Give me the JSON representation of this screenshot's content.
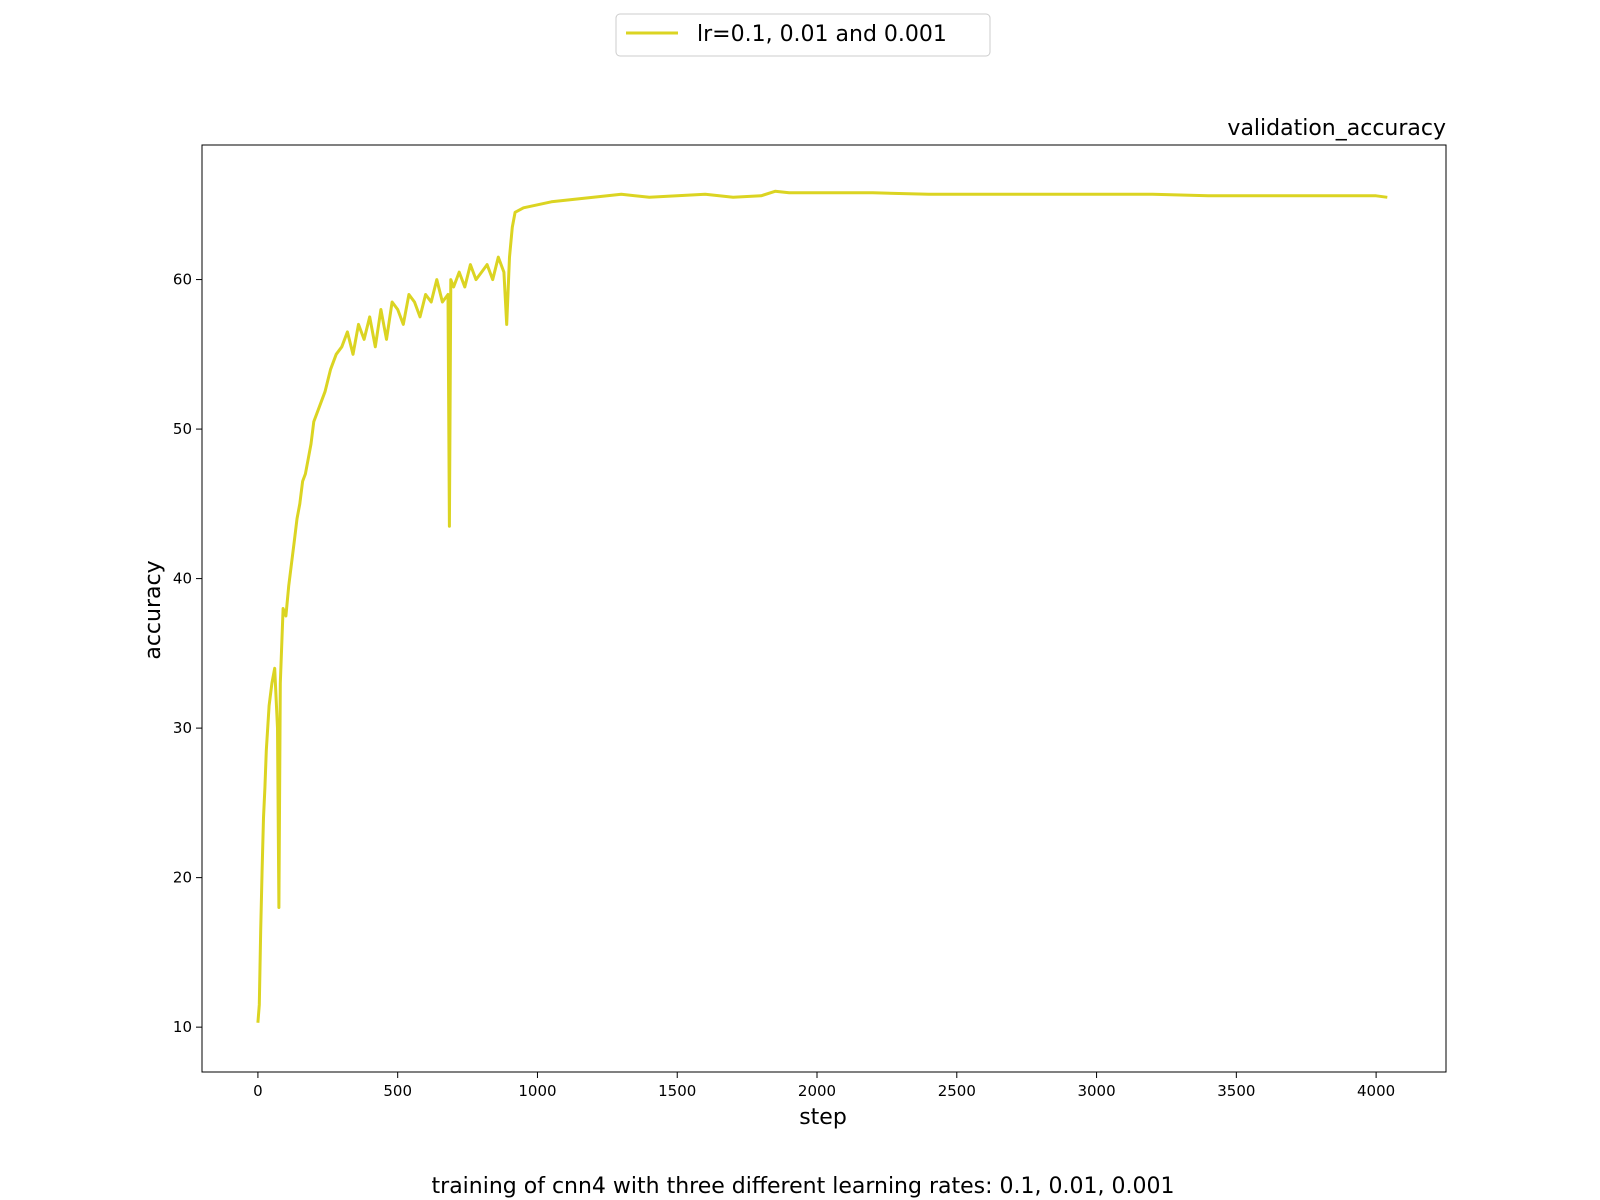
{
  "chart_data": {
    "type": "line",
    "title": "validation_accuracy",
    "xlabel": "step",
    "ylabel": "accuracy",
    "caption": "training of cnn4 with three different learning rates: 0.1, 0.01, 0.001",
    "xlim": [
      -200,
      4250
    ],
    "ylim": [
      7,
      69
    ],
    "xticks": [
      0,
      500,
      1000,
      1500,
      2000,
      2500,
      3000,
      3500,
      4000
    ],
    "yticks": [
      10,
      20,
      30,
      40,
      50,
      60
    ],
    "grid": false,
    "legend_position": "top-center",
    "series": [
      {
        "name": "lr=0.1, 0.01 and 0.001",
        "color": "#dbd422",
        "x": [
          0,
          5,
          10,
          15,
          20,
          25,
          30,
          40,
          50,
          60,
          70,
          75,
          80,
          90,
          100,
          110,
          120,
          130,
          140,
          150,
          160,
          170,
          180,
          190,
          200,
          220,
          240,
          260,
          280,
          300,
          320,
          340,
          360,
          380,
          400,
          420,
          440,
          460,
          480,
          500,
          520,
          540,
          560,
          580,
          600,
          620,
          640,
          660,
          680,
          685,
          690,
          700,
          720,
          740,
          760,
          780,
          800,
          820,
          840,
          860,
          880,
          890,
          900,
          910,
          920,
          950,
          1000,
          1050,
          1100,
          1200,
          1300,
          1400,
          1500,
          1600,
          1700,
          1800,
          1850,
          1900,
          2000,
          2200,
          2400,
          2600,
          2800,
          3000,
          3200,
          3400,
          3600,
          3800,
          4000,
          4040
        ],
        "y": [
          10.3,
          11.5,
          16.5,
          20.5,
          24,
          26,
          28.5,
          31.5,
          33,
          34,
          30,
          18,
          33,
          38,
          37.5,
          39.5,
          41,
          42.5,
          44,
          45,
          46.5,
          47,
          48,
          49,
          50.5,
          51.5,
          52.5,
          54,
          55,
          55.5,
          56.5,
          55,
          57,
          56,
          57.5,
          55.5,
          58,
          56,
          58.5,
          58,
          57,
          59,
          58.5,
          57.5,
          59,
          58.5,
          60,
          58.5,
          59,
          43.5,
          60,
          59.5,
          60.5,
          59.5,
          61,
          60,
          60.5,
          61,
          60,
          61.5,
          60.5,
          57,
          61.5,
          63.5,
          64.5,
          64.8,
          65,
          65.2,
          65.3,
          65.5,
          65.7,
          65.5,
          65.6,
          65.7,
          65.5,
          65.6,
          65.9,
          65.8,
          65.8,
          65.8,
          65.7,
          65.7,
          65.7,
          65.7,
          65.7,
          65.6,
          65.6,
          65.6,
          65.6,
          65.5
        ]
      }
    ]
  }
}
